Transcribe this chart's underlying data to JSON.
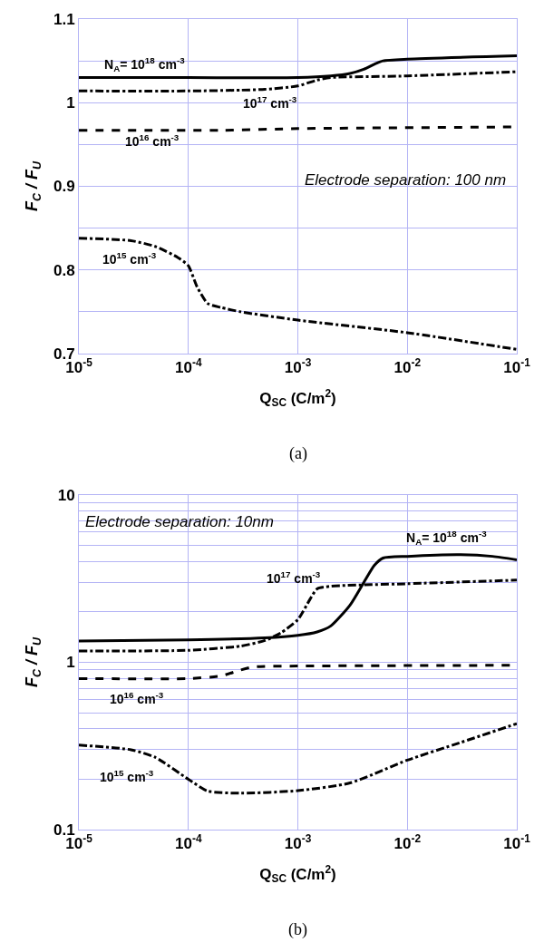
{
  "chart_data": [
    {
      "type": "line",
      "xlabel": "Q$_{SC}$ (C/m$^{2}$)",
      "ylabel": "F$_{C}$ / F$_{U}$",
      "log": "x",
      "grid": true,
      "legend": false,
      "marker": "none",
      "xlim": [
        1e-05,
        0.1
      ],
      "xticks": [
        {
          "value": 1e-05,
          "label": "10$^{-5}$"
        },
        {
          "value": 0.0001,
          "label": "10$^{-4}$"
        },
        {
          "value": 0.001,
          "label": "10$^{-3}$"
        },
        {
          "value": 0.01,
          "label": "10$^{-2}$"
        },
        {
          "value": 0.1,
          "label": "10$^{-1}$"
        }
      ],
      "ylim": [
        0.7,
        1.1
      ],
      "yticks": [
        0.7,
        {
          "value": 0.75,
          "label": null
        },
        0.8,
        {
          "value": 0.85,
          "label": null
        },
        0.9,
        {
          "value": 0.95,
          "label": null
        },
        1,
        {
          "value": 1.05,
          "label": null
        },
        1.1
      ],
      "series": [
        {
          "name": "N$_{A}$= 10$^{18}$ cm$^{-3}$",
          "color": "#000000",
          "line_style": "solid",
          "x": [
            1e-05,
            0.0001,
            0.001,
            0.002,
            0.003,
            0.004,
            0.005,
            0.006,
            0.01,
            0.1
          ],
          "values": [
            1.03,
            1.03,
            1.03,
            1.032,
            1.035,
            1.04,
            1.046,
            1.05,
            1.052,
            1.056
          ]
        },
        {
          "name": "10$^{17}$ cm$^{-3}$",
          "color": "#000000",
          "line_style": "dashdot",
          "x": [
            1e-05,
            0.0001,
            0.0003,
            0.0005,
            0.001,
            0.0015,
            0.002,
            0.01,
            0.1
          ],
          "values": [
            1.014,
            1.014,
            1.015,
            1.016,
            1.02,
            1.027,
            1.03,
            1.032,
            1.037
          ]
        },
        {
          "name": "10$^{16}$ cm$^{-3}$",
          "color": "#000000",
          "line_style": "dashed",
          "x": [
            1e-05,
            0.0002,
            0.001,
            0.1
          ],
          "values": [
            0.967,
            0.967,
            0.969,
            0.971
          ]
        },
        {
          "name": "10$^{15}$ cm$^{-3}$",
          "color": "#000000",
          "line_style": "dashdot",
          "x": [
            1e-05,
            3e-05,
            5e-05,
            8e-05,
            0.0001,
            0.00012,
            0.00015,
            0.0002,
            0.0003,
            0.001,
            0.01,
            0.1
          ],
          "values": [
            0.838,
            0.835,
            0.828,
            0.815,
            0.805,
            0.78,
            0.76,
            0.755,
            0.75,
            0.74,
            0.725,
            0.705
          ]
        }
      ],
      "annotations": [
        "Electrode separation: 100 nm",
        "(a)"
      ]
    },
    {
      "type": "line",
      "xlabel": "Q$_{SC}$ (C/m$^{2}$)",
      "ylabel": "F$_{C}$ / F$_{U}$",
      "log": "xy",
      "grid": true,
      "legend": false,
      "marker": "none",
      "xlim": [
        1e-05,
        0.1
      ],
      "xticks": [
        {
          "value": 1e-05,
          "label": "10$^{-5}$"
        },
        {
          "value": 0.0001,
          "label": "10$^{-4}$"
        },
        {
          "value": 0.001,
          "label": "10$^{-3}$"
        },
        {
          "value": 0.01,
          "label": "10$^{-2}$"
        },
        {
          "value": 0.1,
          "label": "10$^{-1}$"
        }
      ],
      "ylim": [
        0.1,
        10
      ],
      "yticks": [
        0.1,
        {
          "value": 0.2,
          "label": null
        },
        {
          "value": 0.3,
          "label": null
        },
        {
          "value": 0.4,
          "label": null
        },
        {
          "value": 0.5,
          "label": null
        },
        {
          "value": 0.6,
          "label": null
        },
        {
          "value": 0.7,
          "label": null
        },
        {
          "value": 0.8,
          "label": null
        },
        {
          "value": 0.9,
          "label": null
        },
        1,
        {
          "value": 2,
          "label": null
        },
        {
          "value": 3,
          "label": null
        },
        {
          "value": 4,
          "label": null
        },
        {
          "value": 5,
          "label": null
        },
        {
          "value": 6,
          "label": null
        },
        {
          "value": 7,
          "label": null
        },
        {
          "value": 8,
          "label": null
        },
        {
          "value": 9,
          "label": null
        },
        10
      ],
      "series": [
        {
          "name": "N$_{A}$= 10$^{18}$ cm$^{-3}$",
          "color": "#000000",
          "line_style": "solid",
          "x": [
            1e-05,
            0.0001,
            0.0005,
            0.001,
            0.0015,
            0.002,
            0.003,
            0.004,
            0.005,
            0.006,
            0.01,
            0.03,
            0.06,
            0.1
          ],
          "values": [
            1.34,
            1.36,
            1.4,
            1.45,
            1.52,
            1.65,
            2.2,
            3.0,
            3.8,
            4.2,
            4.3,
            4.4,
            4.3,
            4.1
          ]
        },
        {
          "name": "10$^{17}$ cm$^{-3}$",
          "color": "#000000",
          "line_style": "dashdot",
          "x": [
            1e-05,
            0.0001,
            0.0003,
            0.0005,
            0.0007,
            0.001,
            0.0013,
            0.0015,
            0.002,
            0.01,
            0.1
          ],
          "values": [
            1.17,
            1.18,
            1.25,
            1.35,
            1.5,
            1.8,
            2.4,
            2.75,
            2.85,
            2.95,
            3.1
          ]
        },
        {
          "name": "10$^{16}$ cm$^{-3}$",
          "color": "#000000",
          "line_style": "dashed",
          "x": [
            1e-05,
            0.0001,
            0.0002,
            0.0003,
            0.0004,
            0.001,
            0.1
          ],
          "values": [
            0.8,
            0.8,
            0.83,
            0.9,
            0.94,
            0.95,
            0.96
          ]
        },
        {
          "name": "10$^{15}$ cm$^{-3}$",
          "color": "#000000",
          "line_style": "dashdot",
          "x": [
            1e-05,
            3e-05,
            5e-05,
            0.0001,
            0.00015,
            0.0003,
            0.001,
            0.003,
            0.01,
            0.03,
            0.1
          ],
          "values": [
            0.32,
            0.3,
            0.27,
            0.2,
            0.17,
            0.165,
            0.171,
            0.19,
            0.26,
            0.33,
            0.43
          ]
        }
      ],
      "annotations": [
        "Electrode separation: 10nm",
        "(b)"
      ]
    }
  ]
}
